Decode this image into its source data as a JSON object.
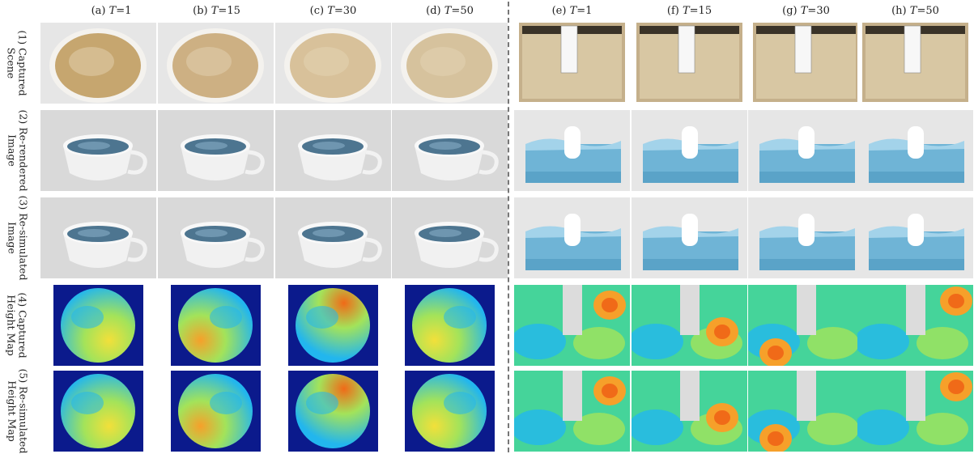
{
  "columns": [
    {
      "prefix": "(a) ",
      "var": "T",
      "suffix": "=1"
    },
    {
      "prefix": "(b) ",
      "var": "T",
      "suffix": "=15"
    },
    {
      "prefix": "(c) ",
      "var": "T",
      "suffix": "=30"
    },
    {
      "prefix": "(d) ",
      "var": "T",
      "suffix": "=50"
    },
    {
      "prefix": "(e) ",
      "var": "T",
      "suffix": "=1"
    },
    {
      "prefix": "(f) ",
      "var": "T",
      "suffix": "=15"
    },
    {
      "prefix": "(g) ",
      "var": "T",
      "suffix": "=30"
    },
    {
      "prefix": "(h) ",
      "var": "T",
      "suffix": "=50"
    }
  ],
  "rows": [
    {
      "line1": "(1) Captured",
      "line2": "Scene",
      "kind": "captured"
    },
    {
      "line1": "(2) Re-rendered",
      "line2": "Image",
      "kind": "rendered"
    },
    {
      "line1": "(3) Re-simulated",
      "line2": "Image",
      "kind": "rendered"
    },
    {
      "line1": "(4) Captured",
      "line2": "Height Map",
      "kind": "heightmap"
    },
    {
      "line1": "(5) Re-simulated",
      "line2": "Height Map",
      "kind": "heightmap"
    }
  ],
  "colors": {
    "heightmap_bg": "#0b1a8c",
    "cell_bg": "#dcdcdc",
    "coffee": "#c9ab78",
    "water": "#6fb4d6",
    "jet_low": "#1d7fe0",
    "jet_mid": "#45d49a",
    "jet_high": "#f06a18"
  }
}
